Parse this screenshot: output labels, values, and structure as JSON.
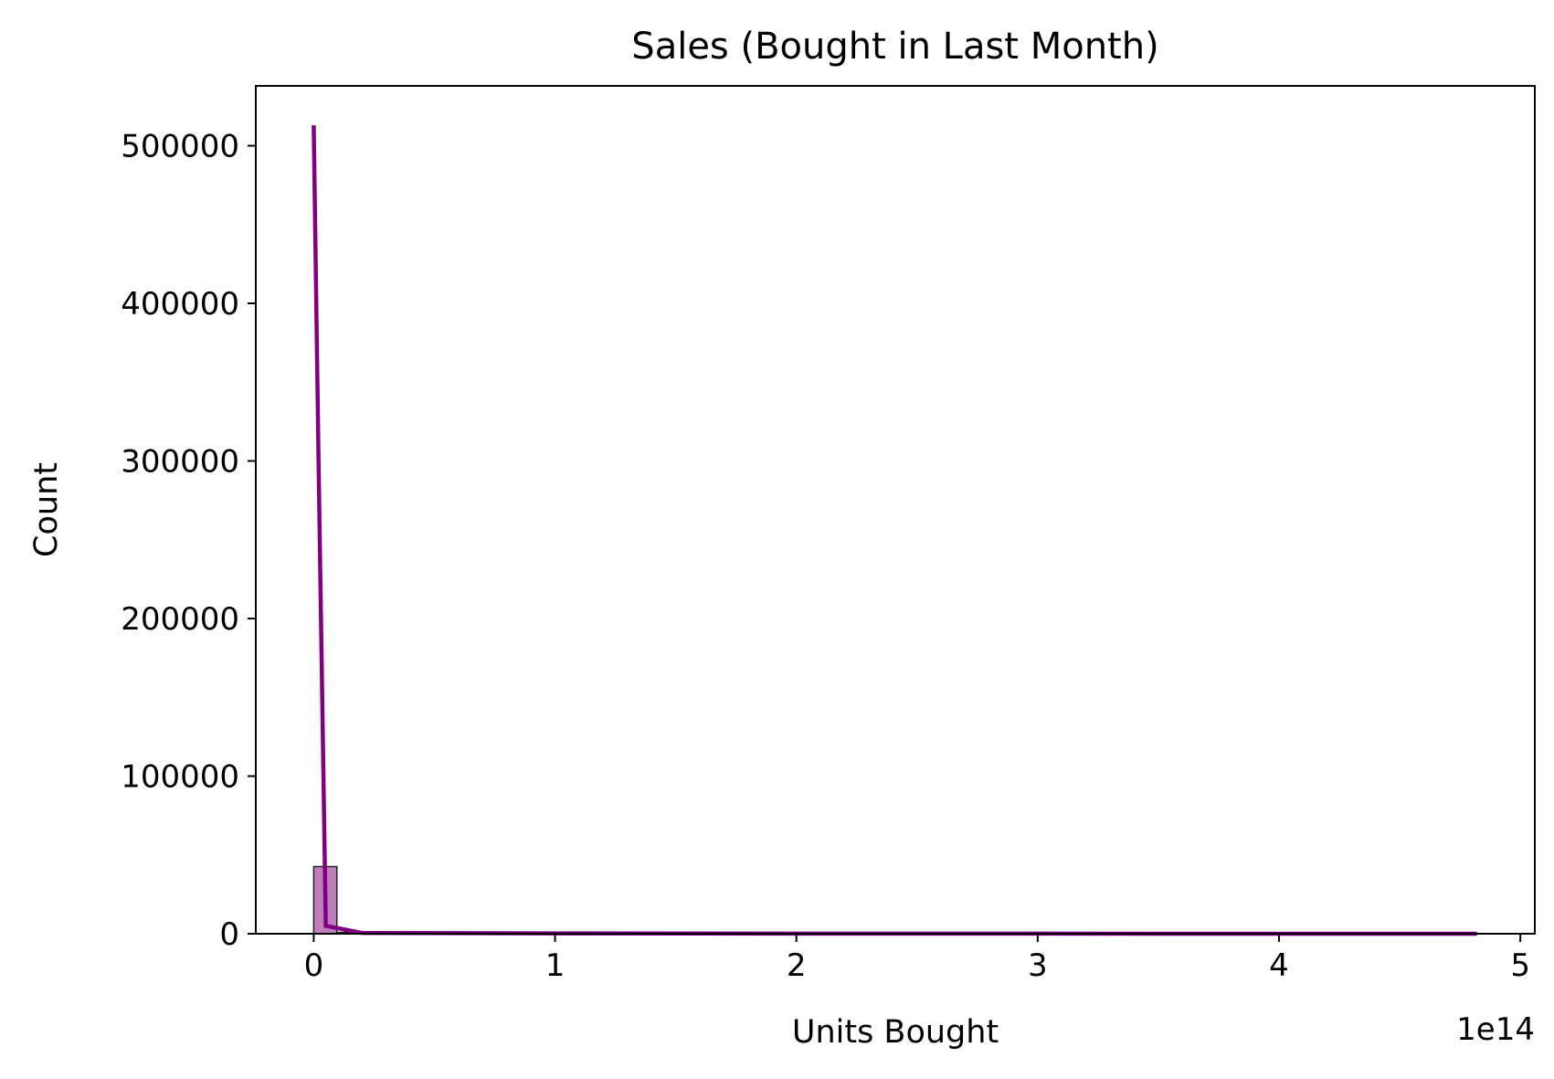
{
  "chart_data": {
    "type": "bar",
    "title": "Sales (Bought in Last Month)",
    "xlabel": "Units Bought",
    "ylabel": "Count",
    "x_offset_label": "1e14",
    "x_tick_labels": [
      "0",
      "1",
      "2",
      "3",
      "4",
      "5"
    ],
    "x_ticks": [
      0,
      1,
      2,
      3,
      4,
      5
    ],
    "y_tick_labels": [
      "0",
      "100000",
      "200000",
      "300000",
      "400000",
      "500000"
    ],
    "y_ticks": [
      0,
      100000,
      200000,
      300000,
      400000,
      500000
    ],
    "xlim": [
      -0.24,
      5.06
    ],
    "ylim": [
      0,
      538000
    ],
    "grid": false,
    "bar_color": "#bf7fbf",
    "bar_edge_color": "#222222",
    "line_color": "#800080",
    "histogram": {
      "bin_width": 0.096,
      "bins": [
        {
          "start": 0.0,
          "count": 42600
        },
        {
          "start": 0.096,
          "count": 300
        },
        {
          "start": 0.192,
          "count": 100
        },
        {
          "start": 0.288,
          "count": 0
        },
        {
          "start": 0.384,
          "count": 0
        }
      ]
    },
    "kde_line": {
      "x": [
        0.0,
        0.02,
        0.05,
        0.2,
        1.0,
        2.0,
        3.0,
        4.0,
        4.82
      ],
      "y": [
        513000,
        300000,
        5000,
        500,
        200,
        100,
        50,
        20,
        0
      ]
    }
  }
}
